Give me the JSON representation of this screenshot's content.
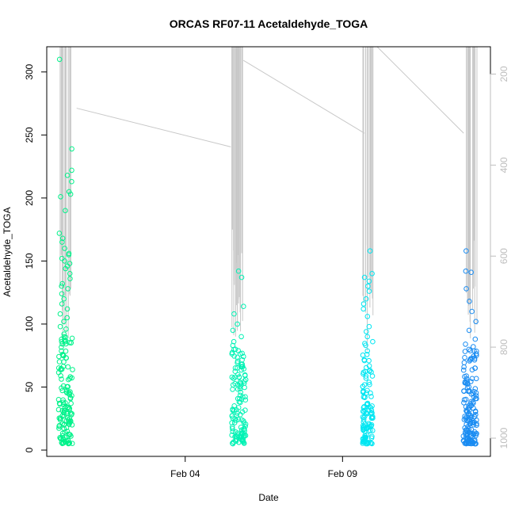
{
  "chart_data": {
    "type": "scatter",
    "title": "ORCAS RF07-11 Acetaldehyde_TOGA",
    "xlabel": "Date",
    "ylabel": "Acetaldehyde_TOGA",
    "x_ticks": [
      {
        "label": "Feb 04",
        "day": 4
      },
      {
        "label": "Feb 09",
        "day": 9
      }
    ],
    "xlim_day": [
      -0.4,
      13.7
    ],
    "ylim": [
      -5,
      320
    ],
    "y_ticks": [
      0,
      50,
      100,
      150,
      200,
      250,
      300
    ],
    "right_axis": {
      "ylim": [
        1040,
        140
      ],
      "ticks": [
        200,
        400,
        600,
        800,
        1000
      ],
      "color": "#bdbdbd"
    },
    "flights": [
      {
        "center_day": 0.2,
        "width": 0.45,
        "color": "#00f28a",
        "highs": [
          310,
          222,
          218,
          213,
          205,
          203,
          201,
          190,
          172,
          168,
          165,
          160,
          156,
          155,
          152,
          150,
          148,
          146,
          144,
          140,
          136,
          132,
          130,
          128,
          124,
          120,
          116,
          112,
          108,
          105,
          102,
          98,
          96,
          92,
          90,
          239
        ],
        "bulk_max": 90,
        "count": 130
      },
      {
        "center_day": 5.7,
        "width": 0.45,
        "color": "#00f2b4",
        "highs": [
          142,
          137,
          114,
          108,
          100,
          95,
          90,
          86,
          83,
          80
        ],
        "bulk_max": 80,
        "count": 120
      },
      {
        "center_day": 9.8,
        "width": 0.32,
        "color": "#00e6f2",
        "highs": [
          158,
          140,
          137,
          134,
          130,
          126,
          120,
          116,
          112,
          106,
          98,
          94,
          90,
          86
        ],
        "bulk_max": 85,
        "count": 110
      },
      {
        "center_day": 13.05,
        "width": 0.42,
        "color": "#1a8cf2",
        "highs": [
          158,
          142,
          141,
          128,
          118,
          110,
          102,
          95,
          88,
          84,
          82
        ],
        "bulk_max": 82,
        "count": 150
      }
    ],
    "altitude_trace": {
      "color": "#c8c8c8",
      "cruise_segments": [
        {
          "from_day": 0.55,
          "from_p": 275,
          "to_day": 5.45,
          "to_p": 360
        },
        {
          "from_day": 5.85,
          "from_p": 170,
          "to_day": 9.7,
          "to_p": 330
        },
        {
          "from_day": 10.1,
          "from_p": 140,
          "to_day": 12.85,
          "to_p": 330
        }
      ],
      "profiles": [
        {
          "day": 0.2,
          "min_p": 140,
          "max_p": 800,
          "n": 16
        },
        {
          "day": 5.65,
          "min_p": 140,
          "max_p": 790,
          "n": 26
        },
        {
          "day": 9.8,
          "min_p": 140,
          "max_p": 810,
          "n": 14
        },
        {
          "day": 13.1,
          "min_p": 140,
          "max_p": 800,
          "n": 16
        }
      ]
    },
    "grid": false,
    "legend": "none"
  }
}
